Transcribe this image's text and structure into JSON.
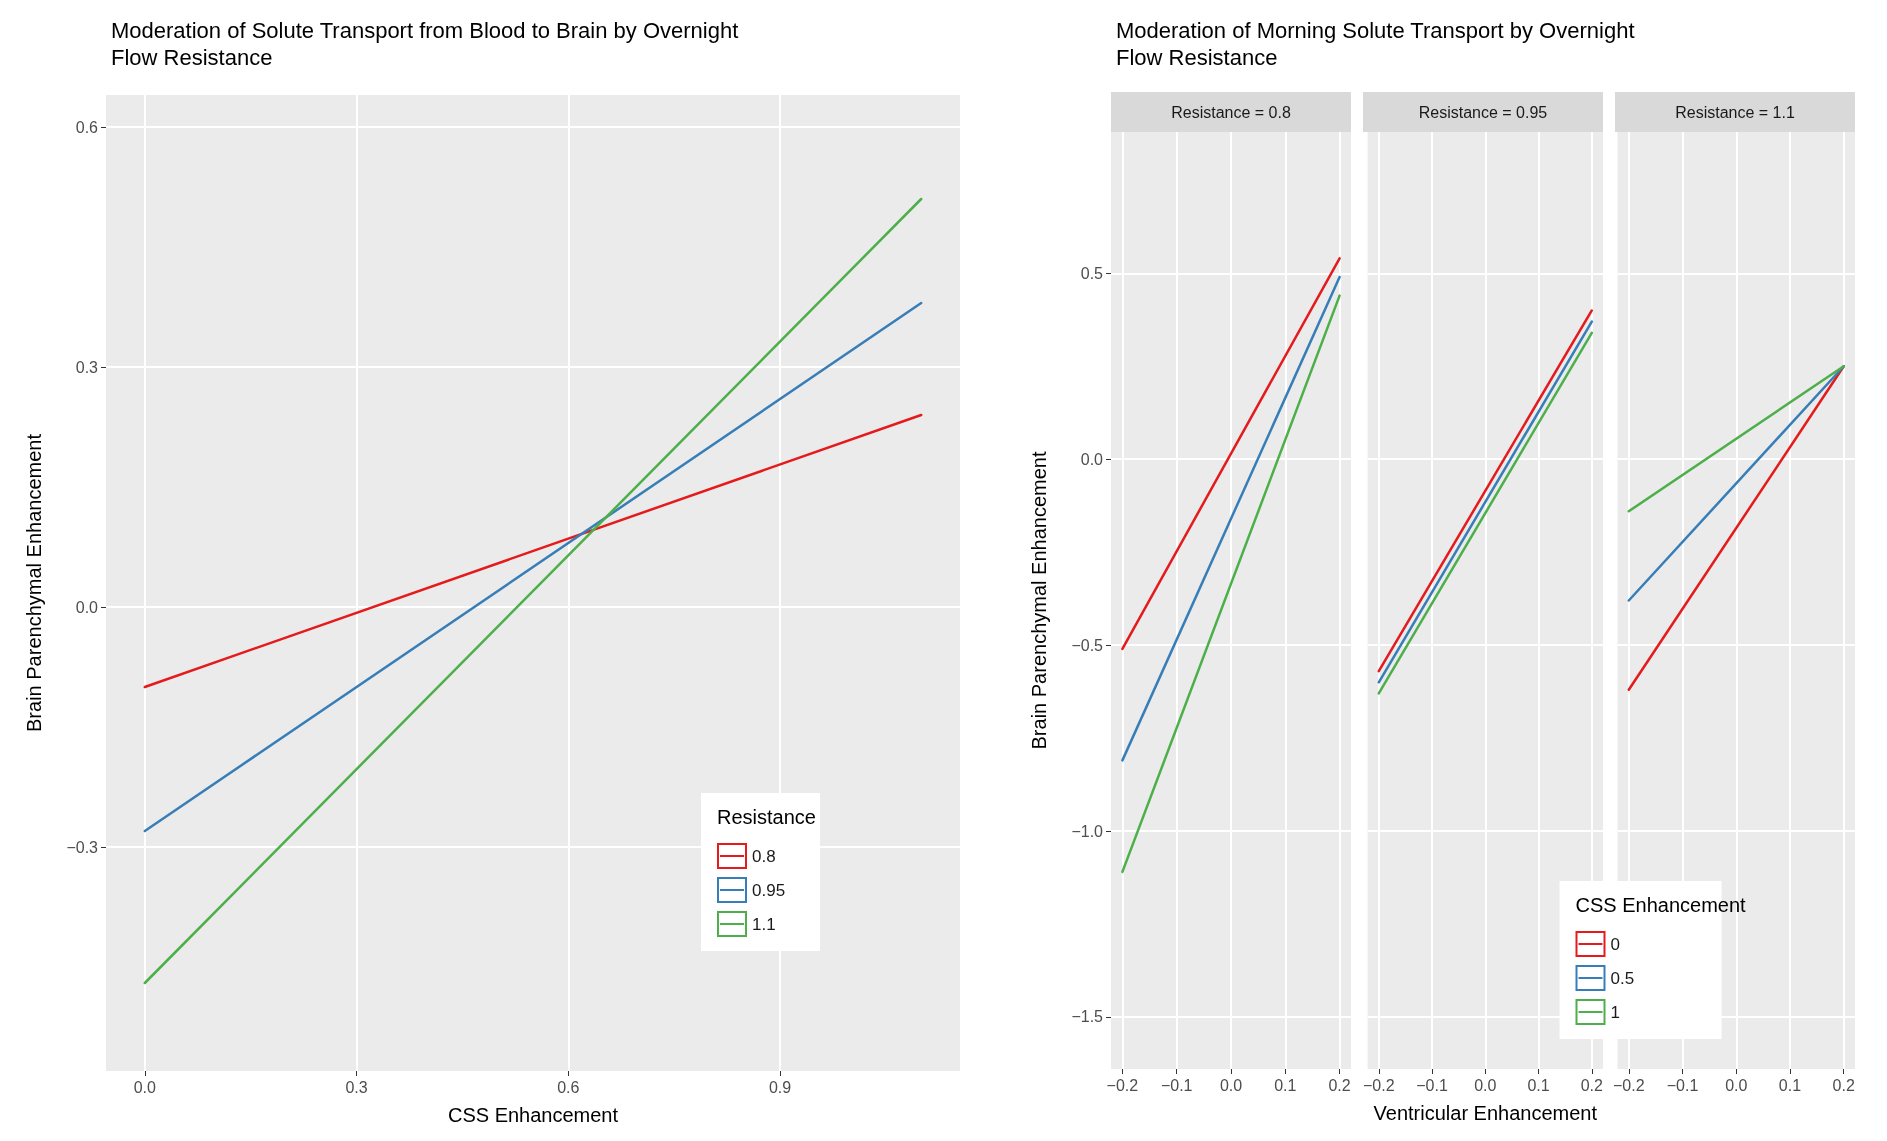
{
  "chart_data": [
    {
      "type": "line",
      "title": "Moderation of Solute Transport from Blood to Brain by Overnight Flow Resistance",
      "xlabel": "CSS Enhancement",
      "ylabel": "Brain Parenchymal Enhancement",
      "legend_title": "Resistance",
      "legend": "bottom right",
      "grid": true,
      "marker": "none",
      "line_style": "solid",
      "x": [
        0,
        1.1
      ],
      "xlim": [
        -0.055,
        1.155
      ],
      "xticks": [
        {
          "value": 0,
          "label": "0.0"
        },
        0.3,
        0.6,
        0.9
      ],
      "ylim": [
        -0.58,
        0.64
      ],
      "yticks": [
        {
          "value": -0.3,
          "label": "−0.3"
        },
        {
          "value": 0,
          "label": "0.0"
        },
        0.3,
        0.6
      ],
      "series": [
        {
          "name": "0.8",
          "color": "#e41a1c",
          "values": [
            -0.1,
            0.24
          ]
        },
        {
          "name": "0.95",
          "color": "#377eb8",
          "values": [
            -0.28,
            0.38
          ]
        },
        {
          "name": "1.1",
          "color": "#4daf4a",
          "values": [
            -0.47,
            0.51
          ]
        }
      ]
    },
    {
      "type": "line",
      "title": "Moderation of Morning Solute Transport by Overnight Flow Resistance",
      "subtitle": "Resistance = 0.8",
      "ylabel": "Brain Parenchymal Enhancement",
      "grid": true,
      "marker": "none",
      "line_style": "solid",
      "x": [
        -0.2,
        0.2
      ],
      "xlim": [
        -0.221,
        0.221
      ],
      "xticks": [
        {
          "value": -0.2,
          "label": "−0.2"
        },
        {
          "value": -0.1,
          "label": "−0.1"
        },
        {
          "value": 0,
          "label": "0.0"
        },
        0.1,
        0.2
      ],
      "ylim": [
        -1.64,
        0.88
      ],
      "yticks": [
        {
          "value": -1.5,
          "label": "−1.5"
        },
        {
          "value": -1,
          "label": "−1.0"
        },
        {
          "value": -0.5,
          "label": "−0.5"
        },
        {
          "value": 0,
          "label": "0.0"
        },
        0.5
      ],
      "series": [
        {
          "color": "#e41a1c",
          "values": [
            -0.51,
            0.54
          ]
        },
        {
          "color": "#377eb8",
          "values": [
            -0.81,
            0.49
          ]
        },
        {
          "color": "#4daf4a",
          "values": [
            -1.11,
            0.44
          ]
        }
      ]
    },
    {
      "type": "line",
      "subtitle": "Resistance = 0.95",
      "xlabel": "Ventricular Enhancement",
      "legend_title": "CSS Enhancement",
      "legend": "bottom right",
      "grid": true,
      "marker": "none",
      "line_style": "solid",
      "tick_labels": "x",
      "x": [
        -0.2,
        0.2
      ],
      "xlim": [
        -0.221,
        0.221
      ],
      "xticks": [
        {
          "value": -0.2,
          "label": "−0.2"
        },
        {
          "value": -0.1,
          "label": "−0.1"
        },
        {
          "value": 0,
          "label": "0.0"
        },
        0.1,
        0.2
      ],
      "ylim": [
        -1.64,
        0.88
      ],
      "yticks": [
        -1.5,
        -1,
        -0.5,
        0,
        0.5
      ],
      "series": [
        {
          "name": "0",
          "color": "#e41a1c",
          "values": [
            -0.57,
            0.4
          ]
        },
        {
          "name": "0.5",
          "color": "#377eb8",
          "values": [
            -0.6,
            0.37
          ]
        },
        {
          "name": "1",
          "color": "#4daf4a",
          "values": [
            -0.63,
            0.34
          ]
        }
      ]
    },
    {
      "type": "line",
      "subtitle": "Resistance = 1.1",
      "grid": true,
      "marker": "none",
      "line_style": "solid",
      "tick_labels": "x",
      "x": [
        -0.2,
        0.2
      ],
      "xlim": [
        -0.221,
        0.221
      ],
      "xticks": [
        {
          "value": -0.2,
          "label": "−0.2"
        },
        {
          "value": -0.1,
          "label": "−0.1"
        },
        {
          "value": 0,
          "label": "0.0"
        },
        0.1,
        0.2
      ],
      "ylim": [
        -1.64,
        0.88
      ],
      "yticks": [
        -1.5,
        -1,
        -0.5,
        0,
        0.5
      ],
      "series": [
        {
          "color": "#e41a1c",
          "values": [
            -0.62,
            0.25
          ]
        },
        {
          "color": "#377eb8",
          "values": [
            -0.38,
            0.25
          ]
        },
        {
          "color": "#4daf4a",
          "values": [
            -0.14,
            0.25
          ]
        }
      ]
    }
  ]
}
